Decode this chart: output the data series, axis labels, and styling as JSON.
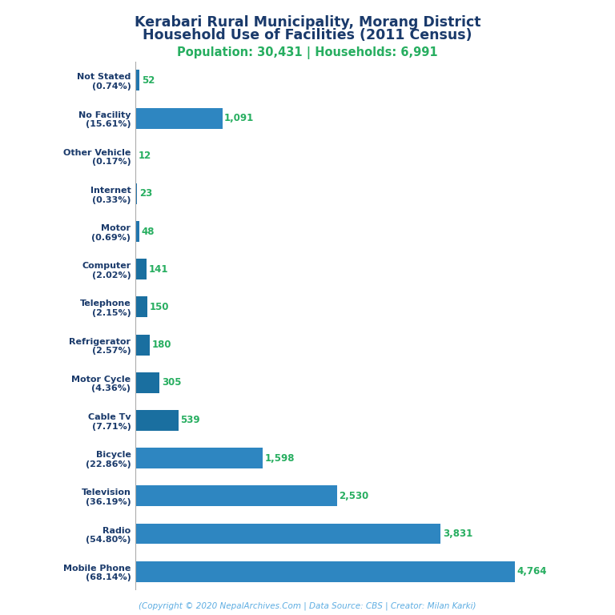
{
  "title_line1": "Kerabari Rural Municipality, Morang District",
  "title_line2": "Household Use of Facilities (2011 Census)",
  "subtitle": "Population: 30,431 | Households: 6,991",
  "footer": "(Copyright © 2020 NepalArchives.Com | Data Source: CBS | Creator: Milan Karki)",
  "categories": [
    "Not Stated\n(0.74%)",
    "No Facility\n(15.61%)",
    "Other Vehicle\n(0.17%)",
    "Internet\n(0.33%)",
    "Motor\n(0.69%)",
    "Computer\n(2.02%)",
    "Telephone\n(2.15%)",
    "Refrigerator\n(2.57%)",
    "Motor Cycle\n(4.36%)",
    "Cable Tv\n(7.71%)",
    "Bicycle\n(22.86%)",
    "Television\n(36.19%)",
    "Radio\n(54.80%)",
    "Mobile Phone\n(68.14%)"
  ],
  "values": [
    52,
    1091,
    12,
    23,
    48,
    141,
    150,
    180,
    305,
    539,
    1598,
    2530,
    3831,
    4764
  ],
  "bar_colors": [
    "#2176ae",
    "#2e86c1",
    "#2176ae",
    "#2176ae",
    "#2176ae",
    "#1a6fa0",
    "#1a6fa0",
    "#1a6fa0",
    "#1a6fa0",
    "#1a6fa0",
    "#2e86c1",
    "#2e86c1",
    "#2e86c1",
    "#2e86c1"
  ],
  "value_color": "#27ae60",
  "title_color": "#1a3a6b",
  "subtitle_color": "#27ae60",
  "footer_color": "#5dade2",
  "background_color": "#ffffff"
}
